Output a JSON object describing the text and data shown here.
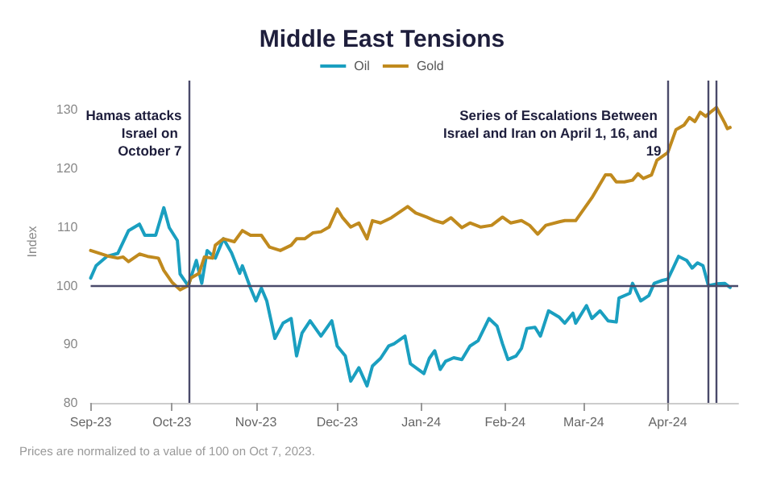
{
  "chart_data": {
    "type": "line",
    "title": "Middle East Tensions",
    "ylabel": "Index",
    "xlim": [
      "2023-09-01",
      "2024-04-27"
    ],
    "xticks": [
      {
        "value": "2023-09-01",
        "label": "Sep-23"
      },
      {
        "value": "2023-10-01",
        "label": "Oct-23"
      },
      {
        "value": "2023-11-01",
        "label": "Nov-23"
      },
      {
        "value": "2023-12-01",
        "label": "Dec-23"
      },
      {
        "value": "2024-01-01",
        "label": "Jan-24"
      },
      {
        "value": "2024-02-01",
        "label": "Feb-24"
      },
      {
        "value": "2024-03-01",
        "label": "Mar-24"
      },
      {
        "value": "2024-04-01",
        "label": "Apr-24"
      }
    ],
    "ylim": [
      80,
      135
    ],
    "yticks": [
      80,
      90,
      100,
      110,
      120,
      130
    ],
    "grid": false,
    "legend": "top",
    "marker": "none",
    "line_style": "solid",
    "series": [
      {
        "name": "Oil",
        "color": "#1a9fc0",
        "x": [
          "2023-09-01",
          "2023-09-03",
          "2023-09-07",
          "2023-09-11",
          "2023-09-15",
          "2023-09-19",
          "2023-09-21",
          "2023-09-25",
          "2023-09-28",
          "2023-09-30",
          "2023-10-03",
          "2023-10-04",
          "2023-10-07",
          "2023-10-10",
          "2023-10-12",
          "2023-10-14",
          "2023-10-17",
          "2023-10-20",
          "2023-10-23",
          "2023-10-26",
          "2023-10-27",
          "2023-10-30",
          "2023-11-01",
          "2023-11-03",
          "2023-11-05",
          "2023-11-08",
          "2023-11-11",
          "2023-11-14",
          "2023-11-16",
          "2023-11-18",
          "2023-11-21",
          "2023-11-25",
          "2023-11-29",
          "2023-12-01",
          "2023-12-04",
          "2023-12-06",
          "2023-12-09",
          "2023-12-12",
          "2023-12-14",
          "2023-12-17",
          "2023-12-20",
          "2023-12-22",
          "2023-12-26",
          "2023-12-28",
          "2024-01-02",
          "2024-01-04",
          "2024-01-06",
          "2024-01-08",
          "2024-01-10",
          "2024-01-13",
          "2024-01-16",
          "2024-01-19",
          "2024-01-22",
          "2024-01-26",
          "2024-01-29",
          "2024-01-31",
          "2024-02-02",
          "2024-02-05",
          "2024-02-07",
          "2024-02-09",
          "2024-02-12",
          "2024-02-14",
          "2024-02-17",
          "2024-02-21",
          "2024-02-23",
          "2024-02-26",
          "2024-02-27",
          "2024-03-02",
          "2024-03-04",
          "2024-03-07",
          "2024-03-10",
          "2024-03-13",
          "2024-03-14",
          "2024-03-18",
          "2024-03-19",
          "2024-03-22",
          "2024-03-25",
          "2024-03-27",
          "2024-03-30",
          "2024-04-01",
          "2024-04-03",
          "2024-04-05",
          "2024-04-08",
          "2024-04-10",
          "2024-04-12",
          "2024-04-14",
          "2024-04-16",
          "2024-04-19",
          "2024-04-22",
          "2024-04-24"
        ],
        "values": [
          101.3,
          103.4,
          105,
          105.5,
          109.4,
          110.5,
          108.6,
          108.6,
          113.3,
          109.9,
          107.7,
          102,
          100,
          104.3,
          100.4,
          106,
          104.7,
          108,
          105.6,
          102.1,
          103.4,
          99.6,
          97.4,
          99.6,
          97.4,
          91,
          93.6,
          94.4,
          88,
          91.9,
          94,
          91.4,
          94,
          89.7,
          88,
          83.7,
          86,
          82.9,
          86.3,
          87.6,
          89.7,
          90.1,
          91.4,
          86.7,
          85,
          87.6,
          88.9,
          85.7,
          87.1,
          87.7,
          87.4,
          89.7,
          90.6,
          94.4,
          93.1,
          90.1,
          87.4,
          88,
          89.3,
          92.7,
          92.9,
          91.4,
          95.7,
          94.6,
          93.6,
          95.3,
          93.6,
          96.6,
          94.4,
          95.7,
          94,
          93.8,
          97.9,
          98.7,
          100.4,
          97.4,
          98.3,
          100.4,
          100.9,
          101.1,
          103,
          105,
          104.3,
          103,
          103.9,
          103.4,
          100,
          100.3,
          100.4,
          99.7
        ]
      },
      {
        "name": "Gold",
        "color": "#c08a1e",
        "x": [
          "2023-09-01",
          "2023-09-07",
          "2023-09-11",
          "2023-09-13",
          "2023-09-15",
          "2023-09-19",
          "2023-09-22",
          "2023-09-26",
          "2023-09-28",
          "2023-10-01",
          "2023-10-04",
          "2023-10-07",
          "2023-10-08",
          "2023-10-11",
          "2023-10-13",
          "2023-10-16",
          "2023-10-17",
          "2023-10-20",
          "2023-10-24",
          "2023-10-27",
          "2023-10-30",
          "2023-11-03",
          "2023-11-06",
          "2023-11-10",
          "2023-11-14",
          "2023-11-16",
          "2023-11-19",
          "2023-11-22",
          "2023-11-25",
          "2023-11-28",
          "2023-12-01",
          "2023-12-03",
          "2023-12-06",
          "2023-12-09",
          "2023-12-12",
          "2023-12-14",
          "2023-12-17",
          "2023-12-21",
          "2023-12-27",
          "2023-12-30",
          "2024-01-03",
          "2024-01-06",
          "2024-01-09",
          "2024-01-12",
          "2024-01-16",
          "2024-01-19",
          "2024-01-23",
          "2024-01-27",
          "2024-01-31",
          "2024-02-03",
          "2024-02-07",
          "2024-02-10",
          "2024-02-13",
          "2024-02-16",
          "2024-02-21",
          "2024-02-23",
          "2024-02-27",
          "2024-03-02",
          "2024-03-04",
          "2024-03-09",
          "2024-03-11",
          "2024-03-13",
          "2024-03-16",
          "2024-03-19",
          "2024-03-21",
          "2024-03-23",
          "2024-03-26",
          "2024-03-28",
          "2024-04-01",
          "2024-04-04",
          "2024-04-07",
          "2024-04-09",
          "2024-04-11",
          "2024-04-13",
          "2024-04-15",
          "2024-04-17",
          "2024-04-19",
          "2024-04-22",
          "2024-04-23",
          "2024-04-24"
        ],
        "values": [
          106,
          105.1,
          104.7,
          104.9,
          104.1,
          105.4,
          105,
          104.7,
          102.6,
          100.6,
          99.3,
          100,
          101.3,
          102.1,
          104.9,
          104.7,
          106.9,
          108,
          107.5,
          109.4,
          108.6,
          108.6,
          106.6,
          106,
          106.9,
          108,
          108,
          109,
          109.2,
          110,
          113.1,
          111.6,
          110,
          110.7,
          108,
          111.1,
          110.7,
          111.6,
          113.5,
          112.4,
          111.7,
          111.1,
          110.7,
          111.6,
          109.9,
          110.7,
          110,
          110.3,
          111.7,
          110.7,
          111.1,
          110.3,
          108.8,
          110.3,
          110.9,
          111.1,
          111.1,
          113.7,
          115,
          118.9,
          118.9,
          117.7,
          117.7,
          118,
          119.1,
          118.3,
          118.9,
          121.4,
          122.7,
          126.6,
          127.4,
          128.7,
          128,
          129.6,
          128.9,
          129.7,
          130.4,
          127.8,
          126.8,
          127
        ]
      }
    ],
    "ref_lines": [
      {
        "axis": "y",
        "value": 100,
        "label": null,
        "color": "#4a4a6a"
      },
      {
        "axis": "x",
        "value": "2023-10-07",
        "label": "Hamas attacks Israel on October 7",
        "color": "#4a4a6a"
      },
      {
        "axis": "x",
        "value": "2024-04-01",
        "label": "Series of Escalations Between Israel and Iran on April 1, 16, and 19",
        "color": "#4a4a6a"
      },
      {
        "axis": "x",
        "value": "2024-04-16",
        "label": null,
        "color": "#4a4a6a"
      },
      {
        "axis": "x",
        "value": "2024-04-19",
        "label": null,
        "color": "#4a4a6a"
      }
    ],
    "annotations": [
      "Prices are normalized to a value of 100 on Oct 7, 2023."
    ]
  }
}
